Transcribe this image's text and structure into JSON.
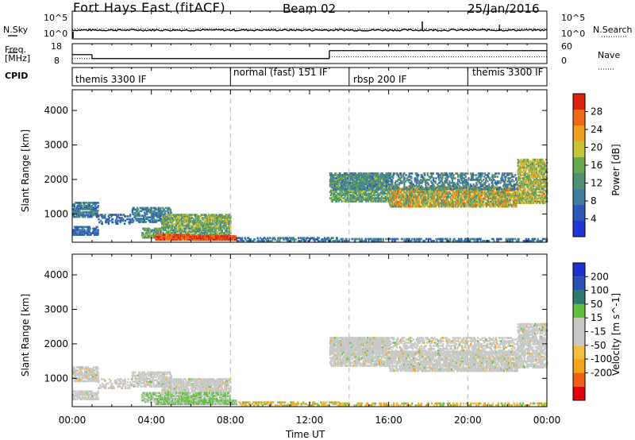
{
  "header": {
    "radar": "Fort Hays East (fitACF)",
    "beam": "Beam 02",
    "date": "25/Jan/2016"
  },
  "side_labels": {
    "nsky": "N.Sky",
    "nsearch": "N.Search",
    "freq_line1": "Freq.",
    "freq_line2": "[MHz]",
    "nave": "Nave",
    "cpid": "CPID"
  },
  "ticks": {
    "noise_left": [
      "10^5",
      "10^0"
    ],
    "noise_right": [
      "10^5",
      "10^0"
    ],
    "freq_left": [
      "18",
      "8"
    ],
    "nave_right": [
      "60",
      "0"
    ],
    "time": [
      "00:00",
      "04:00",
      "08:00",
      "12:00",
      "16:00",
      "20:00",
      "00:00"
    ]
  },
  "cpid_segments": [
    {
      "label": "themis 3300 IF",
      "start_h": 0,
      "end_h": 8
    },
    {
      "label": "normal (fast) 151 IF",
      "start_h": 8,
      "end_h": 14
    },
    {
      "label": "rbsp 200 IF",
      "start_h": 14,
      "end_h": 20
    },
    {
      "label": "themis 3300 IF",
      "start_h": 20,
      "end_h": 24
    }
  ],
  "colors": {
    "power": [
      "#1f36d8",
      "#2c58b8",
      "#3f7f9e",
      "#4f9070",
      "#6aaa4c",
      "#c6c437",
      "#f0a020",
      "#f06818",
      "#e02010"
    ],
    "velocity": [
      "#e3000c",
      "#f06016",
      "#f3a418",
      "#f0c040",
      "#c8c8c6",
      "#c8c8c6",
      "#5ec23c",
      "#2e7a6c",
      "#2a50b4",
      "#2030d0"
    ]
  },
  "chart_data": [
    {
      "type": "line",
      "title": "N.Sky / N.Search",
      "ylim_log10": [
        0,
        5
      ],
      "x_label": "",
      "nsky_level": 1.3,
      "nsearch_level": 1.5
    },
    {
      "type": "line",
      "title": "Freq. / Nave",
      "freq_mhz": [
        {
          "start_h": 0,
          "end_h": 1.0,
          "value": 12.5
        },
        {
          "start_h": 1.0,
          "end_h": 13.0,
          "value": 10.5
        },
        {
          "start_h": 13.0,
          "end_h": 24,
          "value": 14.5
        }
      ],
      "nave": [
        {
          "start_h": 0,
          "end_h": 13.0,
          "value": 15
        },
        {
          "start_h": 13.0,
          "end_h": 24,
          "value": 20
        }
      ]
    },
    {
      "type": "heatmap",
      "ylabel": "Slant Range [km]",
      "xlabel": "",
      "xlim_hours": [
        0,
        24
      ],
      "ylim_km": [
        180,
        4600
      ],
      "yticks": [
        1000,
        2000,
        3000,
        4000
      ],
      "colorbar_label": "Power [dB]",
      "colorbar_ticks": [
        "4",
        "8",
        "12",
        "16",
        "20",
        "24",
        "28"
      ],
      "colorbar_range": [
        0,
        32
      ]
    },
    {
      "type": "heatmap",
      "ylabel": "Slant Range [km]",
      "xlabel": "Time UT",
      "xlim_hours": [
        0,
        24
      ],
      "ylim_km": [
        180,
        4600
      ],
      "yticks": [
        1000,
        2000,
        3000,
        4000
      ],
      "colorbar_label": "Velocity [m s^-1]",
      "colorbar_ticks": [
        "-200",
        "-100",
        "-50",
        "-15",
        "15",
        "50",
        "100",
        "200"
      ]
    }
  ]
}
